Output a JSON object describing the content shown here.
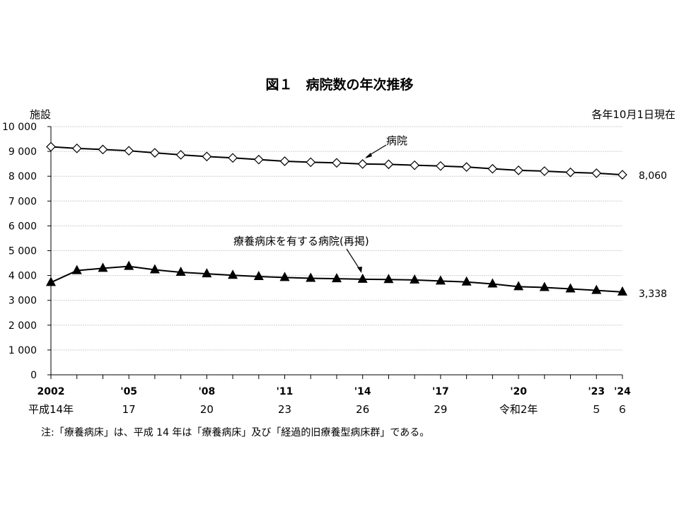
{
  "chart_data": {
    "type": "line",
    "title": "図１　病院数の年次推移",
    "ylabel": "施設",
    "note_top_right": "各年10月1日現在",
    "ylim": [
      0,
      10000
    ],
    "yticks": [
      "0",
      "1 000",
      "2 000",
      "3 000",
      "4 000",
      "5 000",
      "6 000",
      "7 000",
      "8 000",
      "9 000",
      "10 000"
    ],
    "x": [
      2002,
      2003,
      2004,
      2005,
      2006,
      2007,
      2008,
      2009,
      2010,
      2011,
      2012,
      2013,
      2014,
      2015,
      2016,
      2017,
      2018,
      2019,
      2020,
      2021,
      2022,
      2023,
      2024
    ],
    "xtick_labels": [
      {
        "x": 2002,
        "top": "2002",
        "bottom": "平成14年"
      },
      {
        "x": 2005,
        "top": "'05",
        "bottom": "17"
      },
      {
        "x": 2008,
        "top": "'08",
        "bottom": "20"
      },
      {
        "x": 2011,
        "top": "'11",
        "bottom": "23"
      },
      {
        "x": 2014,
        "top": "'14",
        "bottom": "26"
      },
      {
        "x": 2017,
        "top": "'17",
        "bottom": "29"
      },
      {
        "x": 2020,
        "top": "'20",
        "bottom": "令和2年"
      },
      {
        "x": 2023,
        "top": "'23",
        "bottom": "５"
      },
      {
        "x": 2024,
        "top": "'24",
        "bottom": "６"
      }
    ],
    "series": [
      {
        "name": "病院",
        "marker": "open-diamond",
        "end_label": "8,060",
        "values": [
          9187,
          9122,
          9077,
          9026,
          8943,
          8862,
          8794,
          8739,
          8670,
          8605,
          8565,
          8540,
          8493,
          8480,
          8442,
          8412,
          8372,
          8300,
          8238,
          8205,
          8156,
          8122,
          8060
        ]
      },
      {
        "name": "療養病床を有する病院(再掲)",
        "marker": "filled-triangle",
        "end_label": "3,338",
        "values": [
          3720,
          4200,
          4290,
          4370,
          4230,
          4130,
          4070,
          4010,
          3960,
          3920,
          3890,
          3870,
          3850,
          3840,
          3820,
          3780,
          3740,
          3660,
          3550,
          3520,
          3460,
          3400,
          3338
        ]
      }
    ],
    "footnote": "注:「療養病床」は、平成 14 年は「療養病床」及び「経過的旧療養型病床群」である。"
  }
}
